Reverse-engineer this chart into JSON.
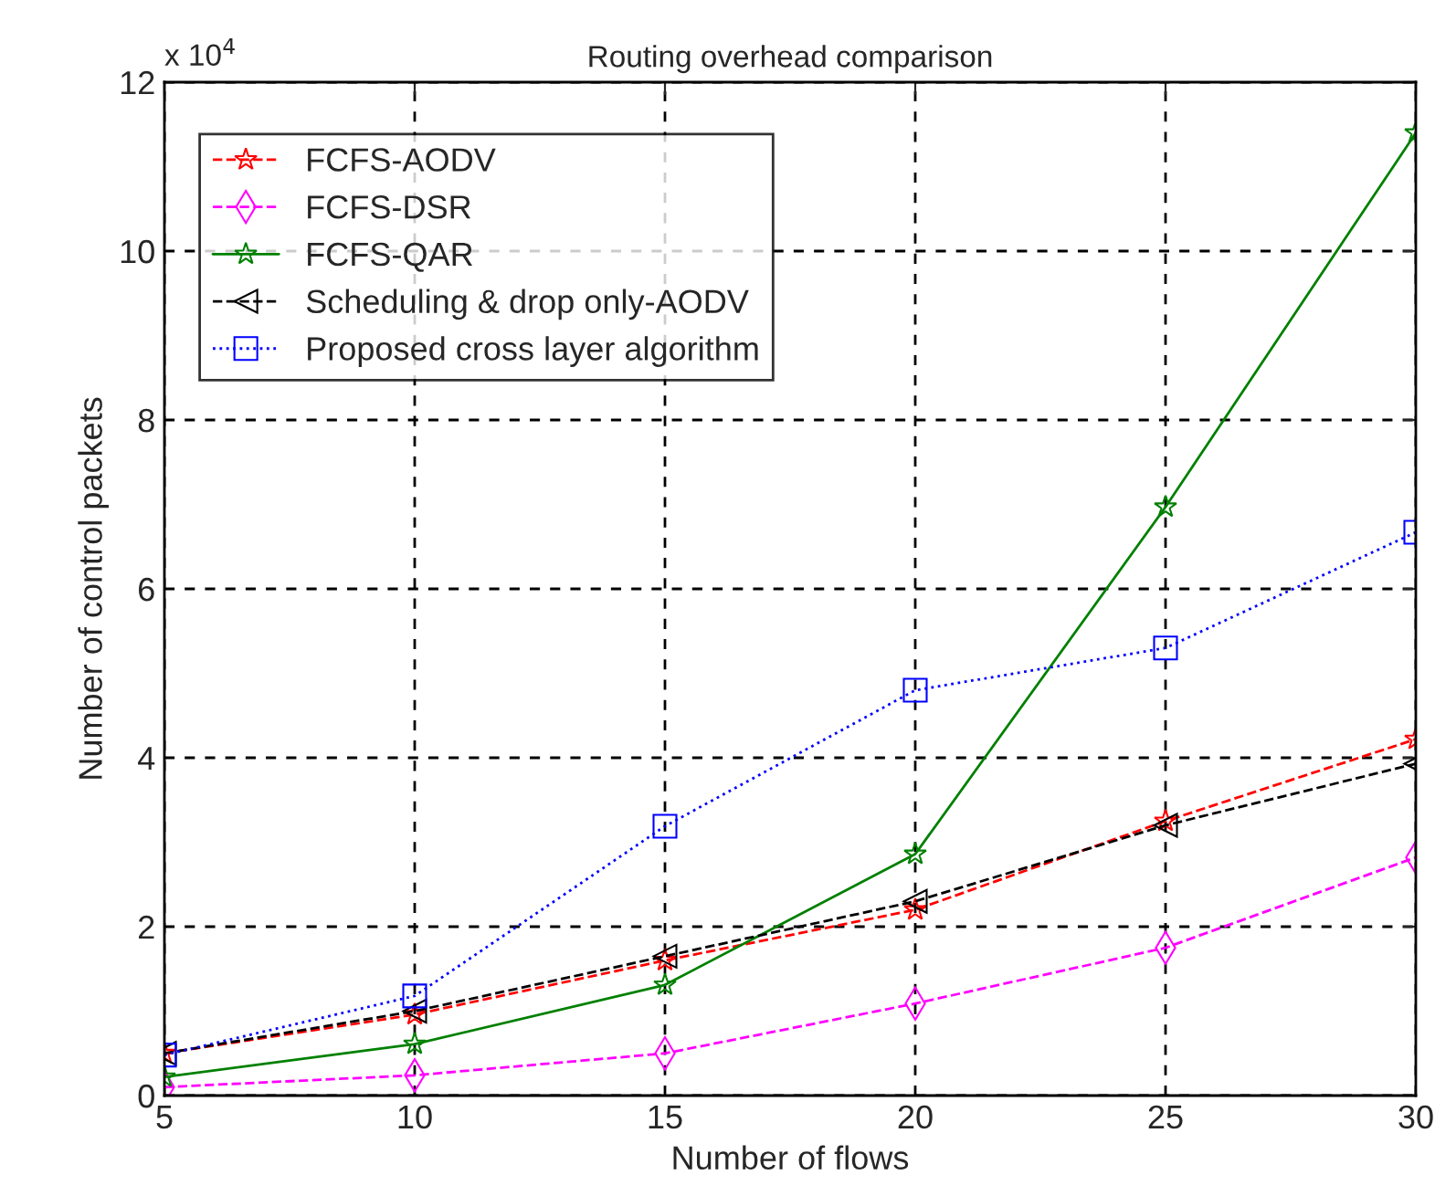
{
  "chart_data": {
    "type": "line",
    "title": "Routing overhead comparison",
    "xlabel": "Number of flows",
    "ylabel": "Number of control packets",
    "x": [
      5,
      10,
      15,
      20,
      25,
      30
    ],
    "series": [
      {
        "name": "FCFS-AODV",
        "color": "#ff0000",
        "marker": "star",
        "line_style": "dashed",
        "values": [
          0.5,
          0.96,
          1.6,
          2.2,
          3.25,
          4.22
        ]
      },
      {
        "name": "FCFS-DSR",
        "color": "#ff00ff",
        "marker": "diamond",
        "line_style": "dashed",
        "values": [
          0.1,
          0.24,
          0.5,
          1.09,
          1.75,
          2.82
        ]
      },
      {
        "name": "FCFS-QAR",
        "color": "#008000",
        "marker": "star",
        "line_style": "solid",
        "values": [
          0.22,
          0.61,
          1.31,
          2.86,
          6.97,
          11.4
        ]
      },
      {
        "name": "Scheduling & drop only-AODV",
        "color": "#000000",
        "marker": "triangle",
        "line_style": "dashed",
        "values": [
          0.5,
          1.0,
          1.65,
          2.3,
          3.2,
          3.93
        ]
      },
      {
        "name": "Proposed cross layer algorithm",
        "color": "#0000ff",
        "marker": "square",
        "line_style": "dotted",
        "values": [
          0.48,
          1.18,
          3.19,
          4.8,
          5.3,
          6.67
        ]
      }
    ],
    "xlim": [
      5,
      30
    ],
    "xticks": [
      5,
      10,
      15,
      20,
      25,
      30
    ],
    "ylim": [
      0,
      12
    ],
    "yticks": [
      0,
      2,
      4,
      6,
      8,
      10,
      12
    ],
    "annotations": [
      "x 10$^{4}$"
    ],
    "grid": true,
    "legend": "top left"
  }
}
